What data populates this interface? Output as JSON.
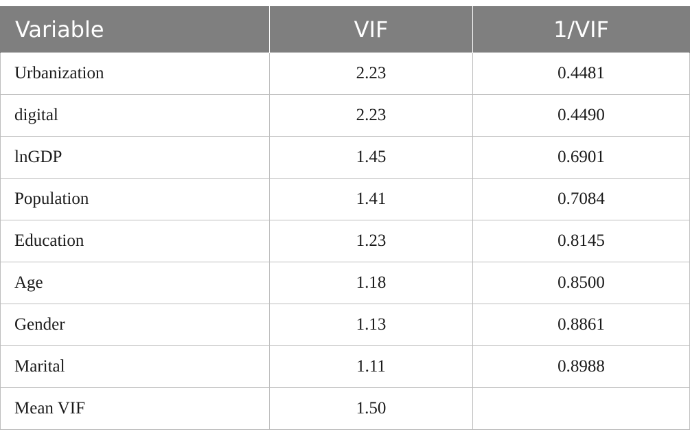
{
  "table": {
    "headers": [
      "Variable",
      "VIF",
      "1/VIF"
    ],
    "rows": [
      {
        "variable": "Urbanization",
        "vif": "2.23",
        "inv_vif": "0.4481"
      },
      {
        "variable": "digital",
        "vif": "2.23",
        "inv_vif": "0.4490"
      },
      {
        "variable": "lnGDP",
        "vif": "1.45",
        "inv_vif": "0.6901"
      },
      {
        "variable": "Population",
        "vif": "1.41",
        "inv_vif": "0.7084"
      },
      {
        "variable": "Education",
        "vif": "1.23",
        "inv_vif": "0.8145"
      },
      {
        "variable": "Age",
        "vif": "1.18",
        "inv_vif": "0.8500"
      },
      {
        "variable": "Gender",
        "vif": "1.13",
        "inv_vif": "0.8861"
      },
      {
        "variable": "Marital",
        "vif": "1.11",
        "inv_vif": "0.8988"
      },
      {
        "variable": "Mean VIF",
        "vif": "1.50",
        "inv_vif": ""
      }
    ]
  },
  "colors": {
    "header_background": "#7f7f7f",
    "header_text": "#ffffff",
    "grid_line": "#bdbdbd",
    "body_text": "#1a1a1a"
  }
}
